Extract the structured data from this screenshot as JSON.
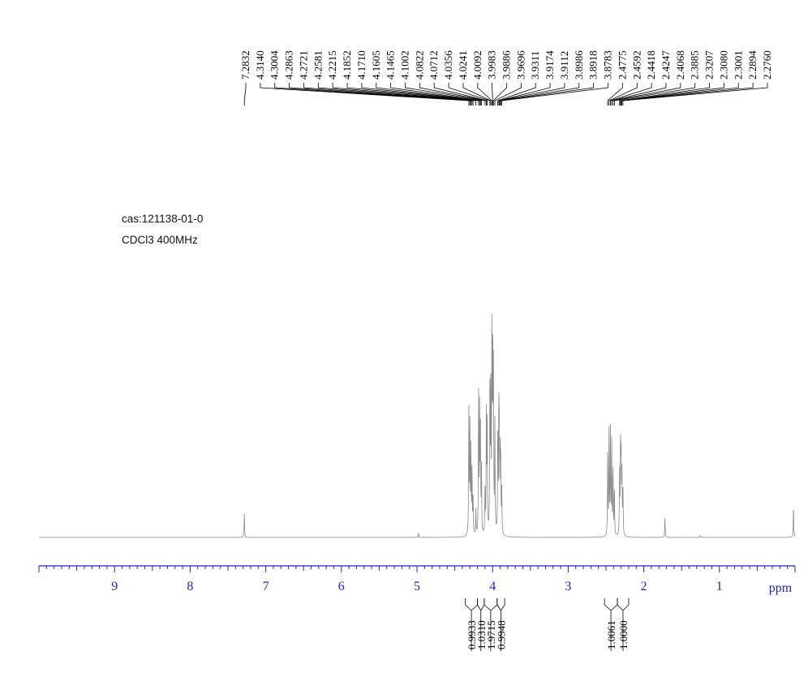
{
  "chart_data": {
    "type": "line",
    "title": "",
    "xlabel": "",
    "ylabel": "",
    "xlim": [
      10,
      0
    ],
    "x_unit": "ppm",
    "x_ticks": [
      "9",
      "8",
      "7",
      "6",
      "5",
      "4",
      "3",
      "2",
      "1"
    ],
    "annotations": [
      "cas:121138-01-0",
      "CDCl3 400MHz"
    ],
    "grid": false,
    "peak_labels": [
      "7.2832",
      "4.3140",
      "4.3004",
      "4.2863",
      "4.2721",
      "4.2581",
      "4.2215",
      "4.1852",
      "4.1710",
      "4.1605",
      "4.1465",
      "4.1002",
      "4.0822",
      "4.0712",
      "4.0356",
      "4.0241",
      "4.0092",
      "3.9983",
      "3.9886",
      "3.9696",
      "3.9311",
      "3.9174",
      "3.9112",
      "3.8986",
      "3.8918",
      "3.8783",
      "2.4775",
      "2.4592",
      "2.4418",
      "2.4247",
      "2.4068",
      "2.3885",
      "2.3207",
      "2.3080",
      "2.3001",
      "2.2894",
      "2.2760"
    ],
    "integrals": [
      {
        "from": 4.36,
        "to": 4.2,
        "value": "0.9933"
      },
      {
        "from": 4.2,
        "to": 4.11,
        "value": "1.0310"
      },
      {
        "from": 4.11,
        "to": 3.94,
        "value": "1.9715"
      },
      {
        "from": 3.94,
        "to": 3.84,
        "value": "0.9948"
      },
      {
        "from": 2.52,
        "to": 2.35,
        "value": "1.0061"
      },
      {
        "from": 2.35,
        "to": 2.2,
        "value": "1.0000"
      }
    ],
    "series": [
      {
        "peaks": [
          {
            "ppm": 7.2832,
            "h": 0.11
          },
          {
            "ppm": 4.314,
            "h": 0.58
          },
          {
            "ppm": 4.3004,
            "h": 0.5
          },
          {
            "ppm": 4.2863,
            "h": 0.38
          },
          {
            "ppm": 4.2721,
            "h": 0.3
          },
          {
            "ppm": 4.2581,
            "h": 0.18
          },
          {
            "ppm": 4.2215,
            "h": 0.12
          },
          {
            "ppm": 4.1852,
            "h": 0.65
          },
          {
            "ppm": 4.171,
            "h": 0.55
          },
          {
            "ppm": 4.1605,
            "h": 0.45
          },
          {
            "ppm": 4.1465,
            "h": 0.3
          },
          {
            "ppm": 4.1002,
            "h": 0.22
          },
          {
            "ppm": 4.0822,
            "h": 0.55
          },
          {
            "ppm": 4.0712,
            "h": 0.5
          },
          {
            "ppm": 4.0356,
            "h": 0.7
          },
          {
            "ppm": 4.0241,
            "h": 0.62
          },
          {
            "ppm": 4.0092,
            "h": 0.95
          },
          {
            "ppm": 3.9983,
            "h": 0.8
          },
          {
            "ppm": 3.9886,
            "h": 0.7
          },
          {
            "ppm": 3.9696,
            "h": 0.5
          },
          {
            "ppm": 3.9311,
            "h": 0.48
          },
          {
            "ppm": 3.9174,
            "h": 0.52
          },
          {
            "ppm": 3.9112,
            "h": 0.42
          },
          {
            "ppm": 3.8986,
            "h": 0.35
          },
          {
            "ppm": 3.8918,
            "h": 0.28
          },
          {
            "ppm": 3.8783,
            "h": 0.2
          },
          {
            "ppm": 2.4775,
            "h": 0.4
          },
          {
            "ppm": 2.4592,
            "h": 0.48
          },
          {
            "ppm": 2.4418,
            "h": 0.5
          },
          {
            "ppm": 2.4247,
            "h": 0.42
          },
          {
            "ppm": 2.4068,
            "h": 0.3
          },
          {
            "ppm": 2.3885,
            "h": 0.22
          },
          {
            "ppm": 2.3207,
            "h": 0.28
          },
          {
            "ppm": 2.308,
            "h": 0.4
          },
          {
            "ppm": 2.3001,
            "h": 0.36
          },
          {
            "ppm": 2.2894,
            "h": 0.3
          },
          {
            "ppm": 2.276,
            "h": 0.22
          },
          {
            "ppm": 4.98,
            "h": 0.02
          },
          {
            "ppm": 1.72,
            "h": 0.09
          },
          {
            "ppm": 1.25,
            "h": 0.01
          },
          {
            "ppm": 0.02,
            "h": 0.14
          }
        ]
      }
    ]
  },
  "colors": {
    "axis": "#1f1fd6",
    "spectrum": "#8a8a8a",
    "text": "#000000"
  }
}
